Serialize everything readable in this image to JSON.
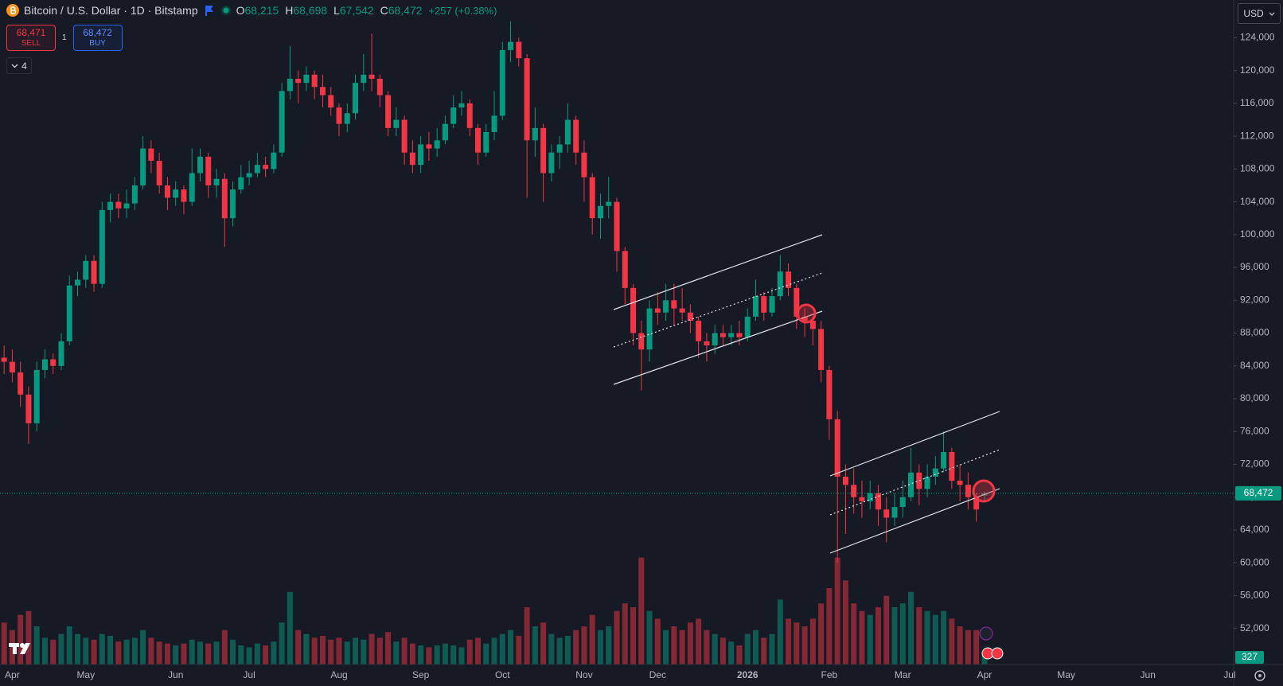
{
  "header": {
    "symbol": "Bitcoin / U.S. Dollar · 1D · Bitstamp",
    "ohlc": [
      {
        "key": "O",
        "value": "68,215"
      },
      {
        "key": "H",
        "value": "68,698"
      },
      {
        "key": "L",
        "value": "67,542"
      },
      {
        "key": "C",
        "value": "68,472"
      }
    ],
    "change": "+257 (+0.38%)"
  },
  "trade": {
    "sell_price": "68,471",
    "sell_label": "SELL",
    "spread": "1",
    "buy_price": "68,472",
    "buy_label": "BUY"
  },
  "indicators": "4",
  "currency": "USD",
  "chart_data": {
    "type": "candlestick",
    "up_color": "#089981",
    "down_color": "#f23645",
    "categories": [
      null,
      "Apr",
      null,
      null,
      null,
      null,
      null,
      null,
      null,
      null,
      "May",
      null,
      null,
      null,
      null,
      null,
      null,
      null,
      null,
      null,
      null,
      "Jun",
      null,
      null,
      null,
      null,
      null,
      null,
      null,
      null,
      "Jul",
      null,
      null,
      null,
      null,
      null,
      null,
      null,
      null,
      null,
      null,
      "Aug",
      null,
      null,
      null,
      null,
      null,
      null,
      null,
      null,
      null,
      "Sep",
      null,
      null,
      null,
      null,
      null,
      null,
      null,
      null,
      null,
      "Oct",
      null,
      null,
      null,
      null,
      null,
      null,
      null,
      null,
      null,
      "Nov",
      null,
      null,
      null,
      null,
      null,
      null,
      null,
      null,
      "Dec",
      null,
      null,
      null,
      null,
      null,
      null,
      null,
      null,
      null,
      null,
      "2026",
      null,
      null,
      null,
      null,
      null,
      null,
      null,
      null,
      null,
      "Feb",
      null,
      null,
      null,
      null,
      null,
      null,
      null,
      null,
      "Mar",
      null,
      null,
      null,
      null,
      null,
      null,
      null,
      null,
      null,
      "Apr",
      null,
      null,
      null,
      null,
      null,
      null,
      null,
      null,
      null,
      "May",
      null,
      null,
      null,
      null,
      null,
      null,
      null,
      null,
      null,
      "Jun",
      null,
      null,
      null,
      null,
      null,
      null,
      null,
      null,
      null,
      "Jul"
    ],
    "open": [
      85000,
      84500,
      83200,
      80500,
      77000,
      83500,
      84800,
      84000,
      87000,
      93800,
      94500,
      96800,
      94000,
      103000,
      104000,
      103200,
      103800,
      106000,
      110500,
      109000,
      106000,
      104500,
      105500,
      104000,
      107500,
      109500,
      106000,
      106800,
      102000,
      105500,
      107000,
      107500,
      108500,
      108000,
      110000,
      117500,
      119000,
      118500,
      119500,
      118000,
      117000,
      115500,
      113500,
      114800,
      118500,
      119500,
      119000,
      117000,
      113000,
      114000,
      110000,
      108500,
      111000,
      110500,
      111500,
      113500,
      115500,
      116000,
      113000,
      110000,
      112500,
      114500,
      122500,
      123500,
      121500,
      111500,
      113000,
      107500,
      110000,
      111000,
      114000,
      110000,
      107000,
      102000,
      103500,
      104000,
      98000,
      93500,
      88000,
      86000,
      91000,
      90500,
      92000,
      91000,
      90500,
      89500,
      87000,
      86500,
      88000,
      87500,
      88000,
      87500,
      90000,
      92500,
      90500,
      92500,
      95500,
      93500,
      90000,
      89500,
      88500,
      83500,
      77500,
      70500,
      69500,
      68000,
      67500,
      68500,
      66500,
      65500,
      66800,
      68000,
      71000,
      69000,
      70500,
      71500,
      73500,
      70000,
      69500,
      68000,
      68215,
      null,
      null,
      null,
      null,
      null,
      null,
      null,
      null,
      null,
      null,
      null,
      null,
      null,
      null,
      null,
      null,
      null,
      null,
      null,
      null,
      null,
      null,
      null,
      null,
      null,
      null,
      null,
      null,
      null,
      null
    ],
    "high": [
      86500,
      86000,
      84500,
      81500,
      84500,
      86000,
      85500,
      88000,
      95000,
      95500,
      97500,
      97500,
      104000,
      105000,
      105000,
      105500,
      107000,
      112000,
      111500,
      110000,
      107000,
      106500,
      106000,
      110500,
      110500,
      110000,
      108000,
      107500,
      106500,
      108500,
      109000,
      110000,
      109500,
      111000,
      118500,
      123000,
      120000,
      120500,
      120000,
      119500,
      118000,
      116000,
      116000,
      119500,
      122000,
      124500,
      119500,
      117500,
      115500,
      114500,
      111500,
      112000,
      112500,
      113000,
      114500,
      117000,
      117500,
      116500,
      113500,
      113500,
      117500,
      123500,
      126000,
      124000,
      122000,
      115500,
      113500,
      111000,
      112000,
      116000,
      114500,
      111500,
      107500,
      105000,
      107000,
      104500,
      98500,
      94000,
      89500,
      92000,
      93000,
      94000,
      94000,
      93500,
      91500,
      90000,
      88000,
      89000,
      89000,
      89000,
      89500,
      91000,
      94500,
      93000,
      93500,
      97500,
      96500,
      94000,
      91000,
      90000,
      89500,
      84000,
      78500,
      72000,
      71500,
      70000,
      70000,
      69500,
      68000,
      68500,
      70000,
      74000,
      72000,
      72000,
      73000,
      76000,
      74000,
      72000,
      71000,
      68500,
      68698,
      null,
      null,
      null,
      null,
      null,
      null,
      null,
      null,
      null,
      null,
      null,
      null,
      null,
      null,
      null,
      null,
      null,
      null,
      null,
      null,
      null,
      null,
      null,
      null,
      null,
      null,
      null,
      null,
      null,
      null
    ],
    "low": [
      83000,
      82000,
      79000,
      74500,
      76000,
      82500,
      83000,
      83500,
      86500,
      92500,
      93500,
      93000,
      93500,
      101500,
      102000,
      102000,
      103000,
      105500,
      107500,
      105000,
      103000,
      103500,
      102500,
      103500,
      106500,
      104500,
      104500,
      98500,
      101000,
      105000,
      106000,
      107000,
      107000,
      107500,
      109500,
      116500,
      116000,
      117500,
      116500,
      115500,
      114500,
      112000,
      112500,
      114000,
      117500,
      117500,
      115500,
      112000,
      112000,
      108500,
      107500,
      107500,
      109000,
      109500,
      111000,
      113000,
      114500,
      112000,
      108500,
      109500,
      111500,
      114000,
      121000,
      120500,
      104500,
      109500,
      104000,
      106500,
      108000,
      110000,
      108500,
      104000,
      100000,
      99500,
      102000,
      95500,
      91500,
      86500,
      81000,
      84500,
      89000,
      89500,
      89000,
      89500,
      88000,
      85000,
      84500,
      85500,
      86500,
      86500,
      86500,
      87000,
      89500,
      89500,
      90000,
      92000,
      92500,
      88500,
      87500,
      86500,
      82000,
      75000,
      60000,
      63500,
      66000,
      65500,
      66500,
      64500,
      62500,
      64500,
      65500,
      67500,
      67000,
      68000,
      69500,
      71000,
      69000,
      67500,
      66500,
      65000,
      67542,
      null,
      null,
      null,
      null,
      null,
      null,
      null,
      null,
      null,
      null,
      null,
      null,
      null,
      null,
      null,
      null,
      null,
      null,
      null,
      null,
      null,
      null,
      null,
      null,
      null,
      null,
      null,
      null,
      null,
      null
    ],
    "close": [
      84500,
      83200,
      80500,
      77000,
      83500,
      84800,
      84000,
      87000,
      93800,
      94500,
      96800,
      94000,
      103000,
      104000,
      103200,
      103800,
      106000,
      110500,
      109000,
      106000,
      104500,
      105500,
      104000,
      107500,
      109500,
      106000,
      106800,
      102000,
      105500,
      107000,
      107500,
      108500,
      108000,
      110000,
      117500,
      119000,
      118500,
      119500,
      118000,
      117000,
      115500,
      113500,
      114800,
      118500,
      119500,
      119000,
      117000,
      113000,
      114000,
      110000,
      108500,
      111000,
      110500,
      111500,
      113500,
      115500,
      116000,
      113000,
      110000,
      112500,
      114500,
      122500,
      123500,
      121500,
      111500,
      113000,
      107500,
      110000,
      111000,
      114000,
      110000,
      107000,
      102000,
      103500,
      104000,
      98000,
      93500,
      88000,
      86000,
      91000,
      90500,
      92000,
      91000,
      90500,
      89500,
      87000,
      86500,
      88000,
      87500,
      88000,
      87500,
      90000,
      92500,
      90500,
      92500,
      95500,
      93500,
      90000,
      89500,
      88500,
      83500,
      77500,
      70500,
      69500,
      68000,
      67500,
      68500,
      66500,
      65500,
      66800,
      68000,
      71000,
      69000,
      70500,
      71500,
      73500,
      70000,
      69500,
      68000,
      66500,
      68472,
      null,
      null,
      null,
      null,
      null,
      null,
      null,
      null,
      null,
      null,
      null,
      null,
      null,
      null,
      null,
      null,
      null,
      null,
      null,
      null,
      null,
      null,
      null,
      null,
      null,
      null,
      null,
      null,
      null,
      null
    ],
    "volume": [
      1100,
      900,
      1300,
      1400,
      1000,
      700,
      650,
      800,
      1000,
      800,
      700,
      650,
      800,
      750,
      600,
      650,
      700,
      900,
      700,
      600,
      550,
      500,
      550,
      650,
      600,
      550,
      600,
      900,
      650,
      500,
      450,
      550,
      500,
      600,
      1100,
      1900,
      900,
      800,
      700,
      750,
      650,
      700,
      600,
      700,
      650,
      800,
      700,
      850,
      600,
      700,
      550,
      500,
      450,
      500,
      550,
      500,
      450,
      650,
      700,
      550,
      700,
      800,
      900,
      750,
      1500,
      1000,
      1100,
      800,
      700,
      750,
      900,
      1000,
      1300,
      900,
      1000,
      1400,
      1600,
      1500,
      2800,
      1400,
      1200,
      900,
      1000,
      900,
      1100,
      1200,
      900,
      800,
      700,
      600,
      500,
      800,
      900,
      700,
      800,
      1700,
      1200,
      1100,
      1000,
      1200,
      1600,
      2000,
      2800,
      2200,
      1600,
      1400,
      1300,
      1500,
      1800,
      1500,
      1600,
      1900,
      1500,
      1400,
      1300,
      1400,
      1200,
      1000,
      900,
      900,
      327,
      null,
      null,
      null,
      null,
      null,
      null,
      null,
      null,
      null,
      null,
      null,
      null,
      null,
      null,
      null,
      null,
      null,
      null,
      null,
      null,
      null,
      null,
      null,
      null,
      null,
      null,
      null,
      null,
      null,
      null
    ],
    "volume_lim": [
      0,
      3000
    ],
    "ylim": [
      47600,
      128600
    ],
    "yticks": [
      {
        "value": 52000,
        "label": "52,000"
      },
      {
        "value": 56000,
        "label": "56,000"
      },
      {
        "value": 60000,
        "label": "60,000"
      },
      {
        "value": 64000,
        "label": "64,000"
      },
      {
        "value": 68000,
        "label": "68,000"
      },
      {
        "value": 72000,
        "label": "72,000"
      },
      {
        "value": 76000,
        "label": "76,000"
      },
      {
        "value": 80000,
        "label": "80,000"
      },
      {
        "value": 84000,
        "label": "84,000"
      },
      {
        "value": 88000,
        "label": "88,000"
      },
      {
        "value": 92000,
        "label": "92,000"
      },
      {
        "value": 96000,
        "label": "96,000"
      },
      {
        "value": 100000,
        "label": "100,000"
      },
      {
        "value": 104000,
        "label": "104,000"
      },
      {
        "value": 108000,
        "label": "108,000"
      },
      {
        "value": 112000,
        "label": "112,000"
      },
      {
        "value": 116000,
        "label": "116,000"
      },
      {
        "value": 120000,
        "label": "120,000"
      },
      {
        "value": 124000,
        "label": "124,000"
      }
    ],
    "last_price_label": "68,472"
  }
}
